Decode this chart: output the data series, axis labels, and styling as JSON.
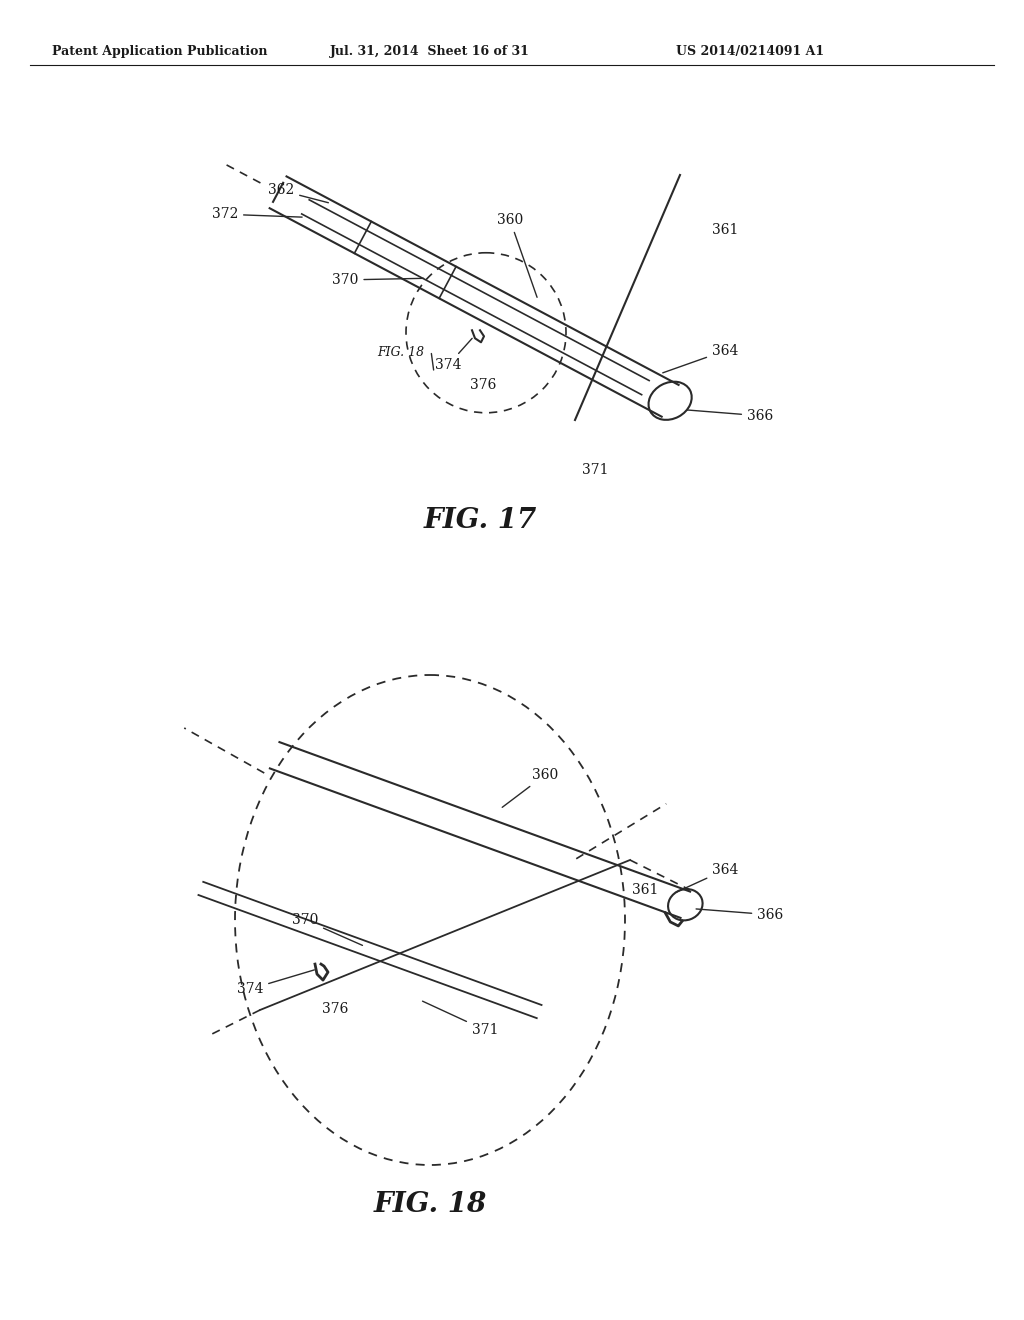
{
  "bg_color": "#ffffff",
  "header_left": "Patent Application Publication",
  "header_mid": "Jul. 31, 2014  Sheet 16 of 31",
  "header_right": "US 2014/0214091 A1",
  "fig17_caption": "FIG. 17",
  "fig18_caption": "FIG. 18",
  "label_color": "#1a1a1a",
  "line_color": "#2a2a2a",
  "fig_caption_fontsize": 20,
  "header_fontsize": 9
}
